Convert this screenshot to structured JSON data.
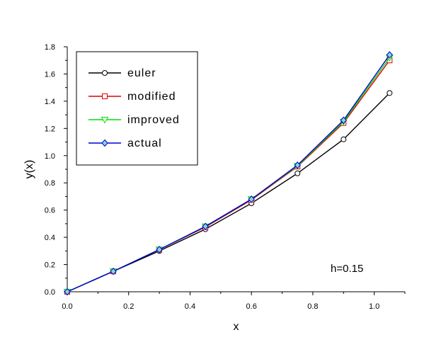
{
  "chart_data": {
    "type": "line",
    "title": "",
    "xlabel": "x",
    "ylabel": "y(x)",
    "xlim": [
      0,
      1.1
    ],
    "ylim": [
      0,
      1.8
    ],
    "x_ticks": [
      "0.0",
      "0.2",
      "0.4",
      "0.6",
      "0.8",
      "1.0"
    ],
    "y_ticks": [
      "0.0",
      "0.2",
      "0.4",
      "0.6",
      "0.8",
      "1.0",
      "1.2",
      "1.4",
      "1.6",
      "1.8"
    ],
    "grid": false,
    "legend_position": "top-left",
    "annotation": "h=0.15",
    "x": [
      0,
      0.15,
      0.3,
      0.45,
      0.6,
      0.75,
      0.9,
      1.05
    ],
    "series": [
      {
        "name": "euler",
        "color": "#000000",
        "marker": "circle",
        "values": [
          0,
          0.15,
          0.3,
          0.46,
          0.65,
          0.87,
          1.12,
          1.46
        ]
      },
      {
        "name": "modified",
        "color": "#e00000",
        "marker": "square",
        "values": [
          0,
          0.15,
          0.31,
          0.475,
          0.675,
          0.92,
          1.24,
          1.7
        ]
      },
      {
        "name": "improved",
        "color": "#00e000",
        "marker": "triangle-down",
        "values": [
          0,
          0.15,
          0.31,
          0.48,
          0.68,
          0.925,
          1.25,
          1.72
        ]
      },
      {
        "name": "actual",
        "color": "#0000d0",
        "marker": "diamond",
        "values": [
          0,
          0.15,
          0.31,
          0.48,
          0.68,
          0.93,
          1.26,
          1.74
        ]
      }
    ]
  }
}
